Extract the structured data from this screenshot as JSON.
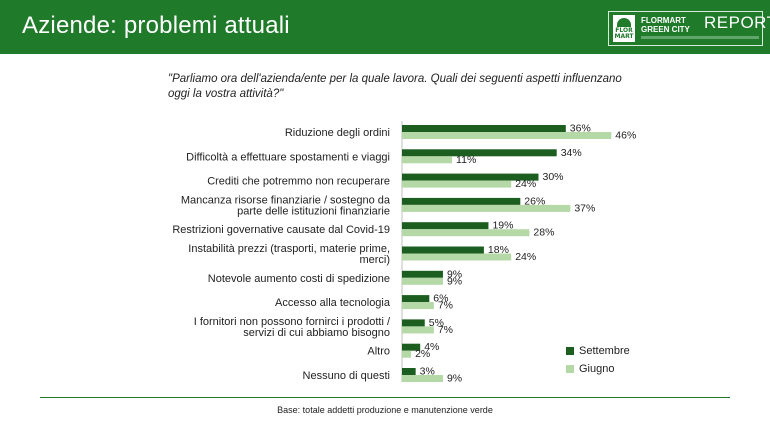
{
  "header": {
    "title": "Aziende: problemi attuali",
    "logo_line1": "FLORMART",
    "logo_line2": "GREEN CITY",
    "logo_report": "REPORT",
    "logo_mark_text": "FLOR MART"
  },
  "question": "\"Parliamo ora dell'azienda/ente per la quale lavora. Quali dei seguenti aspetti influenzano oggi la vostra attività?\"",
  "footnote": "Base: totale addetti produzione e manutenzione verde",
  "colors": {
    "header_bg": "#1f7a2a",
    "settembre": "#1b5e20",
    "giugno": "#b5d8a7"
  },
  "chart_data": {
    "type": "bar",
    "orientation": "horizontal",
    "categories": [
      "Riduzione degli ordini",
      "Difficoltà a effettuare spostamenti e viaggi",
      "Crediti che potremmo non recuperare",
      "Mancanza risorse finanziarie / sostegno da parte delle istituzioni finanziarie",
      "Restrizioni governative causate dal Covid-19",
      "Instabilità prezzi (trasporti, materie prime, merci)",
      "Notevole aumento costi di spedizione",
      "Accesso alla tecnologia",
      "I fornitori non possono fornirci i prodotti / servizi di cui abbiamo bisogno",
      "Altro",
      "Nessuno di questi"
    ],
    "category_lines": [
      [
        "Riduzione degli ordini"
      ],
      [
        "Difficoltà a effettuare spostamenti e viaggi"
      ],
      [
        "Crediti che potremmo non recuperare"
      ],
      [
        "Mancanza risorse finanziarie / sostegno da",
        "parte delle istituzioni finanziarie"
      ],
      [
        "Restrizioni governative causate dal Covid-19"
      ],
      [
        "Instabilità prezzi (trasporti, materie prime,",
        "merci)"
      ],
      [
        "Notevole aumento costi di spedizione"
      ],
      [
        "Accesso alla tecnologia"
      ],
      [
        "I fornitori non possono fornirci i prodotti /",
        "servizi di cui abbiamo bisogno"
      ],
      [
        "Altro"
      ],
      [
        "Nessuno di questi"
      ]
    ],
    "series": [
      {
        "name": "Settembre",
        "values": [
          36,
          34,
          30,
          26,
          19,
          18,
          9,
          6,
          5,
          4,
          3
        ]
      },
      {
        "name": "Giugno",
        "values": [
          46,
          11,
          24,
          37,
          28,
          24,
          9,
          7,
          7,
          2,
          9
        ]
      }
    ],
    "value_suffix": "%",
    "xlim": [
      0,
      50
    ],
    "grid": false,
    "legend_position": "bottom-right"
  }
}
